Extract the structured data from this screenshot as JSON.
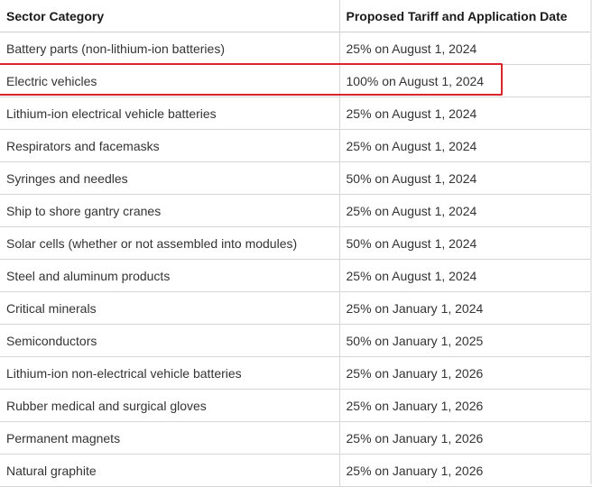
{
  "table": {
    "headers": [
      "Sector Category",
      "Proposed Tariff and Application Date"
    ],
    "rows": [
      [
        "Battery parts (non-lithium-ion batteries)",
        "25% on August 1, 2024"
      ],
      [
        "Electric vehicles",
        "100% on August 1, 2024"
      ],
      [
        "Lithium-ion electrical vehicle batteries",
        "25% on August 1, 2024"
      ],
      [
        "Respirators and facemasks",
        "25% on August 1, 2024"
      ],
      [
        "Syringes and needles",
        "50% on August 1, 2024"
      ],
      [
        "Ship to shore gantry cranes",
        "25% on August 1, 2024"
      ],
      [
        "Solar cells (whether or not assembled into modules)",
        "50% on August 1, 2024"
      ],
      [
        "Steel and aluminum products",
        "25% on August 1, 2024"
      ],
      [
        "Critical minerals",
        "25% on January 1, 2024"
      ],
      [
        "Semiconductors",
        "50% on January 1, 2025"
      ],
      [
        "Lithium-ion non-electrical vehicle batteries",
        "25% on January 1, 2026"
      ],
      [
        "Rubber medical and surgical gloves",
        "25% on January 1, 2026"
      ],
      [
        "Permanent magnets",
        "25% on January 1, 2026"
      ],
      [
        "Natural graphite",
        "25% on January 1, 2026"
      ]
    ]
  },
  "highlight": {
    "row_index": 1,
    "color": "#d9262b"
  }
}
